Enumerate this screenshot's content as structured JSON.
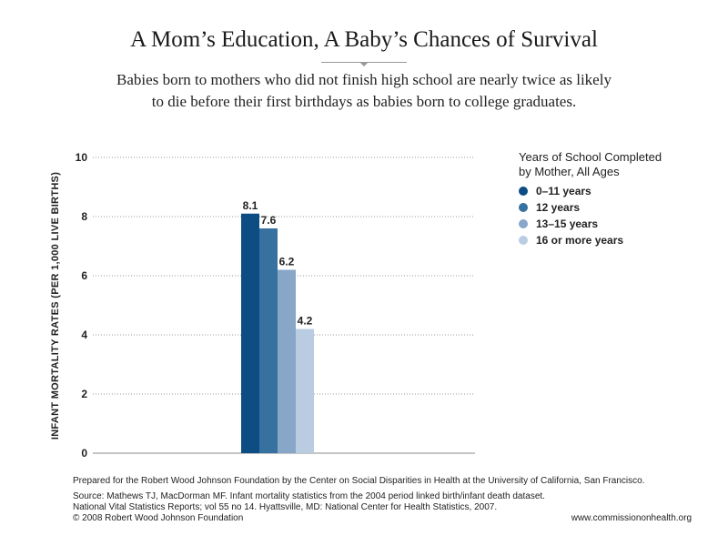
{
  "header": {
    "title": "A Mom’s Education, A Baby’s Chances of Survival",
    "subtitle_line1": "Babies born to mothers who did not finish high school are nearly twice as likely",
    "subtitle_line2": "to die before their first birthdays as babies born to college graduates."
  },
  "chart_data": {
    "type": "bar",
    "categories": [
      "0–11 years",
      "12 years",
      "13–15 years",
      "16 or more years"
    ],
    "values": [
      8.1,
      7.6,
      6.2,
      4.2
    ],
    "data_labels": [
      "8.1",
      "7.6",
      "6.2",
      "4.2"
    ],
    "colors": [
      "#0d4d84",
      "#36719f",
      "#87a6c8",
      "#b9cce2"
    ],
    "ylabel": "INFANT MORTALITY RATES (PER 1,000 LIVE BIRTHS)",
    "ylim": [
      0,
      10
    ],
    "yticks": [
      0,
      2,
      4,
      6,
      8,
      10
    ],
    "ytick_labels": [
      "0",
      "2",
      "4",
      "6",
      "8",
      "10"
    ],
    "grid": "horizontal-dotted",
    "legend": {
      "title_line1": "Years of School Completed",
      "title_line2": "by Mother, All Ages",
      "placement": "right",
      "items": [
        {
          "label": "0–11 years",
          "color": "#0d4d84"
        },
        {
          "label": "12 years",
          "color": "#36719f"
        },
        {
          "label": "13–15 years",
          "color": "#87a6c8"
        },
        {
          "label": "16 or more years",
          "color": "#b9cce2"
        }
      ]
    }
  },
  "footer": {
    "prepared": "Prepared for the Robert Wood Johnson Foundation by the Center on Social Disparities in Health at the University of California, San Francisco.",
    "source_line1": "Source: Mathews TJ, MacDorman MF. Infant mortality statistics from the 2004 period linked birth/infant death dataset.",
    "source_line2": "National Vital Statistics Reports; vol 55 no 14. Hyattsville, MD: National Center for Health Statistics, 2007.",
    "copyright": "© 2008 Robert Wood Johnson Foundation",
    "website": "www.commissiononhealth.org"
  }
}
